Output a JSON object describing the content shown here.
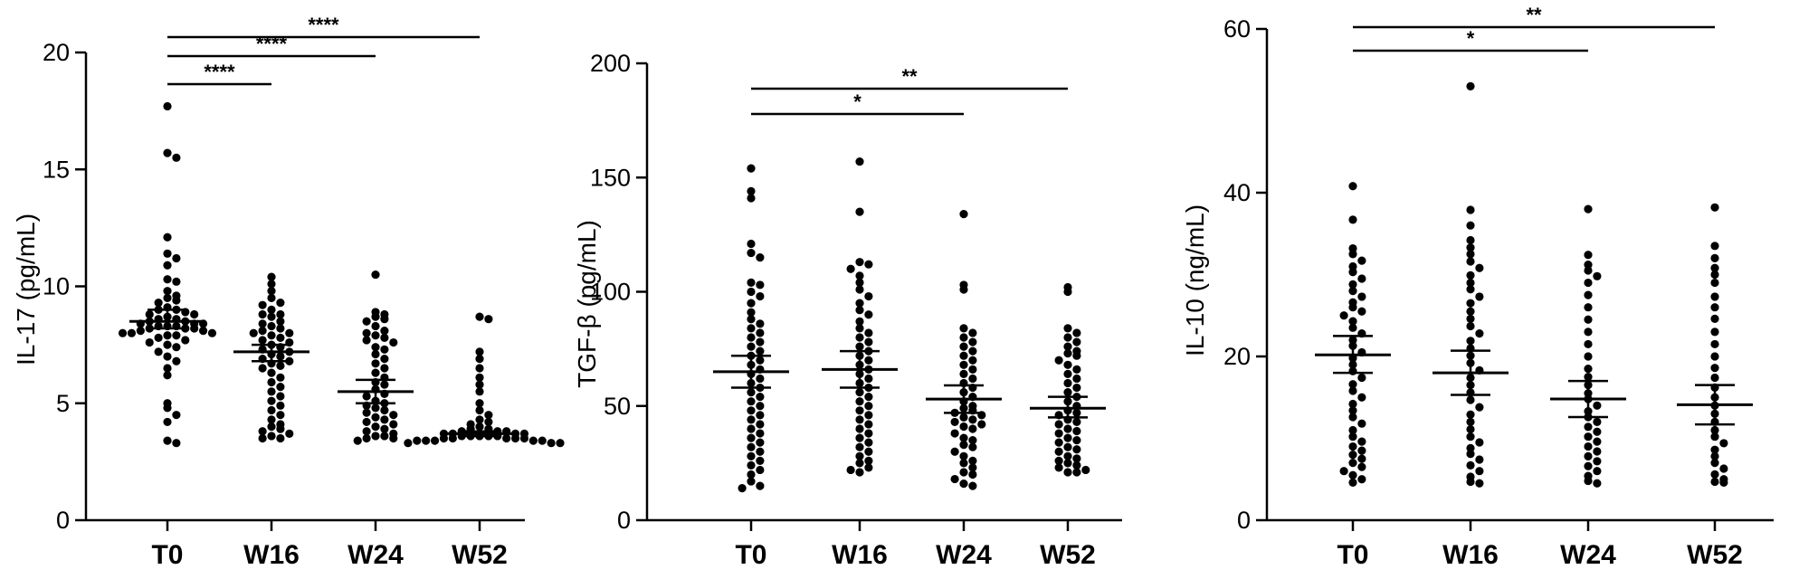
{
  "chart_data": [
    {
      "type": "scatter",
      "ylabel": "IL-17 (pg/mL)",
      "ylim": [
        0,
        20
      ],
      "yticks": [
        0,
        5,
        10,
        15,
        20
      ],
      "categories": [
        "T0",
        "W16",
        "W24",
        "W52"
      ],
      "groups": [
        {
          "name": "T0",
          "mean": 8.5,
          "ci": [
            8.2,
            9.0
          ],
          "values": [
            17.7,
            15.7,
            15.5,
            12.1,
            11.4,
            11.2,
            10.9,
            10.3,
            10.2,
            9.8,
            9.6,
            9.5,
            9.4,
            9.3,
            9.1,
            9.0,
            9.0,
            8.9,
            8.8,
            8.8,
            8.7,
            8.6,
            8.6,
            8.5,
            8.5,
            8.4,
            8.4,
            8.4,
            8.3,
            8.3,
            8.3,
            8.2,
            8.2,
            8.2,
            8.1,
            8.1,
            8.0,
            8.0,
            8.0,
            7.9,
            7.9,
            7.8,
            7.7,
            7.6,
            7.5,
            7.4,
            7.2,
            7.0,
            6.8,
            6.5,
            6.2,
            5.0,
            4.8,
            4.5,
            4.2,
            3.4,
            3.3
          ]
        },
        {
          "name": "W16",
          "mean": 7.2,
          "ci": [
            6.8,
            7.5
          ],
          "values": [
            10.4,
            10.1,
            9.8,
            9.5,
            9.3,
            9.2,
            9.0,
            8.8,
            8.8,
            8.7,
            8.5,
            8.4,
            8.3,
            8.2,
            8.1,
            8.0,
            8.0,
            7.9,
            7.8,
            7.7,
            7.6,
            7.5,
            7.4,
            7.3,
            7.2,
            7.1,
            7.0,
            6.9,
            6.8,
            6.7,
            6.6,
            6.5,
            6.3,
            6.1,
            5.9,
            5.7,
            5.5,
            5.3,
            5.1,
            4.9,
            4.7,
            4.5,
            4.3,
            4.1,
            4.0,
            3.9,
            3.8,
            3.7,
            3.6,
            3.5,
            3.5
          ]
        },
        {
          "name": "W24",
          "mean": 5.5,
          "ci": [
            5.0,
            6.0
          ],
          "values": [
            10.5,
            8.9,
            8.8,
            8.7,
            8.6,
            8.5,
            8.3,
            8.1,
            8.0,
            7.9,
            7.8,
            7.7,
            7.6,
            7.4,
            7.3,
            7.1,
            6.9,
            6.7,
            6.5,
            6.3,
            6.1,
            5.9,
            5.8,
            5.6,
            5.4,
            5.3,
            5.1,
            5.0,
            4.9,
            4.8,
            4.7,
            4.6,
            4.5,
            4.4,
            4.3,
            4.2,
            4.1,
            4.0,
            3.9,
            3.8,
            3.7,
            3.6,
            3.6,
            3.5,
            3.5,
            3.4
          ]
        },
        {
          "name": "W52",
          "mean": 3.7,
          "ci": [
            3.6,
            3.8
          ],
          "values": [
            8.7,
            8.6,
            7.2,
            6.9,
            6.5,
            6.1,
            5.8,
            5.5,
            5.0,
            4.7,
            4.5,
            4.3,
            4.2,
            4.1,
            4.0,
            3.9,
            3.9,
            3.8,
            3.8,
            3.8,
            3.7,
            3.7,
            3.7,
            3.7,
            3.6,
            3.6,
            3.6,
            3.6,
            3.6,
            3.5,
            3.5,
            3.5,
            3.5,
            3.5,
            3.4,
            3.4,
            3.4,
            3.4,
            3.4,
            3.3,
            3.3,
            3.3
          ]
        }
      ],
      "significance": [
        {
          "from": "T0",
          "to": "W16",
          "label": "****"
        },
        {
          "from": "T0",
          "to": "W24",
          "label": "****"
        },
        {
          "from": "T0",
          "to": "W52",
          "label": "****"
        }
      ]
    },
    {
      "type": "scatter",
      "ylabel": "TGF-β (pg/mL)",
      "ylim": [
        0,
        200
      ],
      "yticks": [
        0,
        50,
        100,
        150,
        200
      ],
      "categories": [
        "T0",
        "W16",
        "W24",
        "W52"
      ],
      "groups": [
        {
          "name": "T0",
          "mean": 65,
          "ci": [
            58,
            72
          ],
          "values": [
            154,
            144,
            141,
            121,
            117,
            115,
            104,
            103,
            100,
            98,
            95,
            91,
            88,
            86,
            84,
            82,
            80,
            78,
            76,
            74,
            72,
            70,
            68,
            66,
            64,
            62,
            60,
            58,
            56,
            54,
            52,
            50,
            48,
            46,
            44,
            42,
            40,
            38,
            36,
            34,
            32,
            30,
            28,
            26,
            24,
            22,
            20,
            17,
            15,
            14
          ]
        },
        {
          "name": "W16",
          "mean": 66,
          "ci": [
            58,
            74
          ],
          "values": [
            157,
            135,
            113,
            112,
            110,
            107,
            104,
            101,
            98,
            95,
            92,
            90,
            87,
            84,
            82,
            80,
            78,
            76,
            74,
            72,
            70,
            68,
            66,
            64,
            62,
            60,
            58,
            56,
            54,
            52,
            50,
            48,
            46,
            44,
            42,
            40,
            38,
            36,
            34,
            32,
            30,
            28,
            26,
            25,
            23,
            22,
            21
          ]
        },
        {
          "name": "W24",
          "mean": 53,
          "ci": [
            47,
            59
          ],
          "values": [
            134,
            103,
            101,
            84,
            82,
            80,
            78,
            76,
            74,
            72,
            70,
            68,
            66,
            64,
            62,
            60,
            58,
            56,
            54,
            52,
            50,
            49,
            48,
            47,
            46,
            45,
            44,
            43,
            42,
            41,
            40,
            38,
            36,
            35,
            33,
            32,
            30,
            28,
            26,
            25,
            23,
            21,
            20,
            18,
            16,
            15
          ]
        },
        {
          "name": "W52",
          "mean": 49,
          "ci": [
            45,
            54
          ],
          "values": [
            102,
            100,
            84,
            82,
            80,
            78,
            76,
            74,
            73,
            72,
            70,
            68,
            66,
            64,
            62,
            60,
            58,
            56,
            54,
            52,
            50,
            48,
            47,
            46,
            44,
            43,
            42,
            40,
            39,
            38,
            36,
            35,
            34,
            32,
            31,
            30,
            28,
            27,
            26,
            25,
            24,
            23,
            22,
            21,
            21
          ]
        }
      ],
      "significance": [
        {
          "from": "T0",
          "to": "W24",
          "label": "*"
        },
        {
          "from": "T0",
          "to": "W52",
          "label": "**"
        }
      ]
    },
    {
      "type": "scatter",
      "ylabel": "IL-10 (ng/mL)",
      "ylim": [
        0,
        60
      ],
      "yticks": [
        0,
        20,
        40,
        60
      ],
      "categories": [
        "T0",
        "W16",
        "W24",
        "W52"
      ],
      "groups": [
        {
          "name": "T0",
          "mean": 20.2,
          "ci": [
            18.0,
            22.5
          ],
          "values": [
            40.8,
            36.7,
            33.2,
            32.5,
            31.7,
            31.0,
            30.3,
            29.5,
            28.8,
            28.0,
            27.3,
            26.6,
            26.0,
            25.5,
            25.0,
            24.3,
            23.5,
            22.8,
            22.0,
            21.3,
            20.5,
            19.8,
            19.0,
            18.2,
            17.4,
            16.6,
            15.8,
            15.0,
            14.2,
            13.4,
            12.6,
            11.8,
            11.0,
            10.2,
            9.6,
            9.0,
            8.5,
            8.0,
            7.5,
            7.0,
            6.5,
            6.0,
            5.5,
            5.0,
            4.6
          ]
        },
        {
          "name": "W16",
          "mean": 18.0,
          "ci": [
            15.3,
            20.7
          ],
          "values": [
            53.0,
            37.9,
            36.0,
            34.2,
            33.3,
            32.5,
            31.6,
            30.8,
            29.9,
            29.0,
            28.2,
            27.3,
            26.5,
            25.5,
            24.6,
            23.7,
            22.8,
            21.9,
            21.0,
            20.1,
            19.2,
            18.3,
            17.4,
            16.5,
            15.6,
            14.7,
            13.8,
            12.9,
            12.0,
            11.1,
            10.2,
            9.5,
            8.8,
            8.1,
            7.4,
            6.7,
            6.0,
            5.3,
            4.7,
            4.5
          ]
        },
        {
          "name": "W24",
          "mean": 14.8,
          "ci": [
            12.6,
            17.0
          ],
          "values": [
            38.0,
            32.4,
            31.2,
            30.5,
            29.8,
            29.0,
            27.5,
            26.0,
            24.5,
            23.0,
            21.5,
            20.0,
            18.5,
            17.5,
            16.5,
            15.5,
            14.8,
            14.0,
            13.3,
            12.6,
            12.0,
            11.4,
            10.8,
            10.2,
            9.6,
            9.0,
            8.4,
            7.8,
            7.2,
            6.6,
            6.0,
            5.4,
            4.8,
            4.5
          ]
        },
        {
          "name": "W52",
          "mean": 14.1,
          "ci": [
            11.7,
            16.5
          ],
          "values": [
            38.2,
            33.5,
            32.0,
            30.8,
            30.0,
            29.0,
            27.3,
            26.0,
            24.6,
            23.0,
            21.5,
            20.0,
            18.6,
            17.4,
            16.2,
            15.0,
            14.0,
            13.0,
            12.0,
            11.0,
            10.2,
            9.4,
            8.6,
            7.8,
            7.0,
            6.3,
            5.6,
            5.0,
            4.7,
            4.6
          ]
        }
      ],
      "significance": [
        {
          "from": "T0",
          "to": "W24",
          "label": "*"
        },
        {
          "from": "T0",
          "to": "W52",
          "label": "**"
        }
      ]
    }
  ]
}
